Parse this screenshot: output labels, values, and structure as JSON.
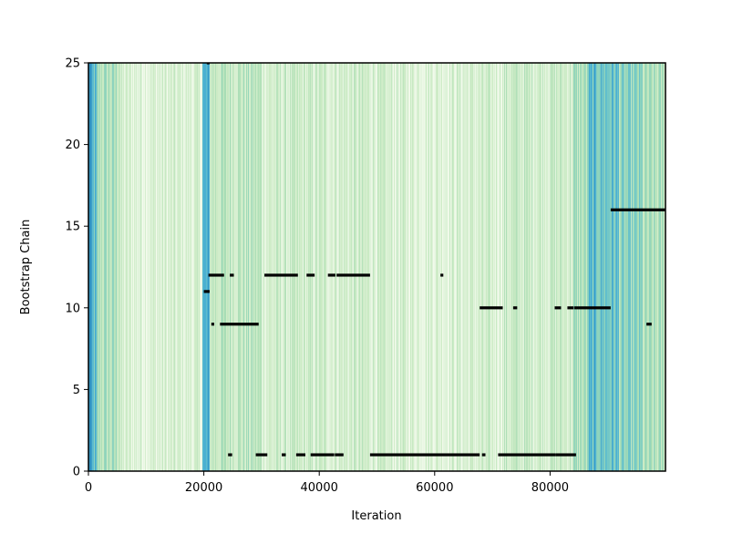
{
  "chart_data": {
    "type": "heatmap",
    "title": "",
    "xlabel": "Iteration",
    "ylabel": "Bootstrap Chain",
    "xlim": [
      0,
      100000
    ],
    "ylim": [
      0,
      25
    ],
    "xticks": [
      0,
      20000,
      40000,
      60000,
      80000
    ],
    "xtick_labels": [
      "0",
      "20000",
      "40000",
      "60000",
      "80000"
    ],
    "yticks": [
      0,
      5,
      10,
      15,
      20,
      25
    ],
    "ytick_labels": [
      "0",
      "5",
      "10",
      "15",
      "20",
      "25"
    ],
    "grid": false,
    "legend": "none",
    "colormap": [
      "#f7fcf0",
      "#e0f3db",
      "#ccebc5",
      "#a8ddb5",
      "#7bccc4",
      "#4eb3d3",
      "#2b8cbe"
    ],
    "background_bands": [
      {
        "x": [
          0,
          400
        ],
        "level": 1.0
      },
      {
        "x": [
          400,
          1500
        ],
        "level": 0.72
      },
      {
        "x": [
          1500,
          5500
        ],
        "level": 0.45
      },
      {
        "x": [
          5500,
          19800
        ],
        "level": 0.2
      },
      {
        "x": [
          19800,
          21000
        ],
        "level": 0.78
      },
      {
        "x": [
          21000,
          30000
        ],
        "level": 0.38
      },
      {
        "x": [
          30000,
          50000
        ],
        "level": 0.26
      },
      {
        "x": [
          50000,
          72000
        ],
        "level": 0.22
      },
      {
        "x": [
          72000,
          84000
        ],
        "level": 0.3
      },
      {
        "x": [
          84000,
          86500
        ],
        "level": 0.45
      },
      {
        "x": [
          86500,
          92000
        ],
        "level": 0.72
      },
      {
        "x": [
          92000,
          96000
        ],
        "level": 0.55
      },
      {
        "x": [
          96000,
          100000
        ],
        "level": 0.42
      }
    ],
    "series": [
      {
        "chain": 25,
        "segments": [
          [
            20500,
            21000
          ]
        ]
      },
      {
        "chain": 16,
        "segments": [
          [
            90500,
            100000
          ]
        ]
      },
      {
        "chain": 12,
        "segments": [
          [
            20800,
            23500
          ],
          [
            24500,
            25200
          ],
          [
            30500,
            36300
          ],
          [
            37800,
            39200
          ],
          [
            41500,
            42800
          ],
          [
            43000,
            48800
          ],
          [
            61000,
            61500
          ]
        ]
      },
      {
        "chain": 11,
        "segments": [
          [
            20000,
            21000
          ]
        ]
      },
      {
        "chain": 10,
        "segments": [
          [
            67800,
            71800
          ],
          [
            73600,
            74300
          ],
          [
            80800,
            81900
          ],
          [
            83000,
            84100
          ],
          [
            84200,
            90500
          ]
        ]
      },
      {
        "chain": 9,
        "segments": [
          [
            21300,
            21800
          ],
          [
            22800,
            29500
          ],
          [
            96700,
            97600
          ]
        ]
      },
      {
        "chain": 1,
        "segments": [
          [
            24200,
            24900
          ],
          [
            29000,
            31000
          ],
          [
            33500,
            34200
          ],
          [
            36000,
            37600
          ],
          [
            38500,
            42600
          ],
          [
            42700,
            44200
          ],
          [
            48800,
            67800
          ],
          [
            68200,
            68800
          ],
          [
            71000,
            81000
          ],
          [
            81000,
            84500
          ]
        ]
      }
    ]
  }
}
